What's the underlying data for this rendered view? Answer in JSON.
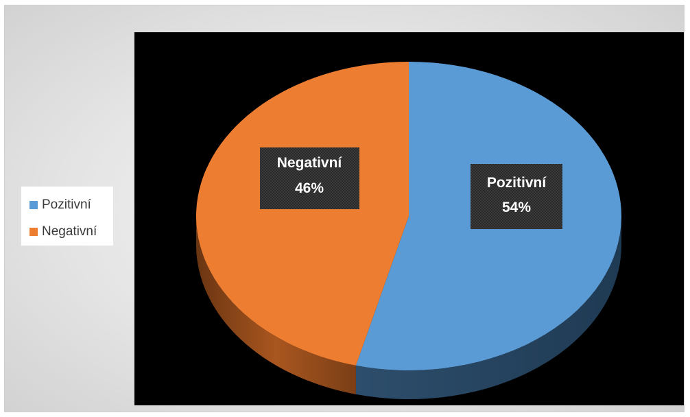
{
  "chart_data": {
    "type": "pie",
    "style": "3d",
    "categories": [
      "Pozitivní",
      "Negativní"
    ],
    "values": [
      54,
      46
    ],
    "percent_labels": [
      "54%",
      "46%"
    ],
    "colors": [
      "#5b9bd5",
      "#ed7d31"
    ],
    "legend_position": "left",
    "start_angle_deg": 0,
    "direction": "clockwise"
  },
  "legend": {
    "items": [
      {
        "label": "Pozitivní",
        "color": "#5b9bd5"
      },
      {
        "label": "Negativní",
        "color": "#ed7d31"
      }
    ]
  },
  "labels": {
    "positive": {
      "name": "Pozitivní",
      "value": "54%"
    },
    "negative": {
      "name": "Negativní",
      "value": "46%"
    }
  }
}
